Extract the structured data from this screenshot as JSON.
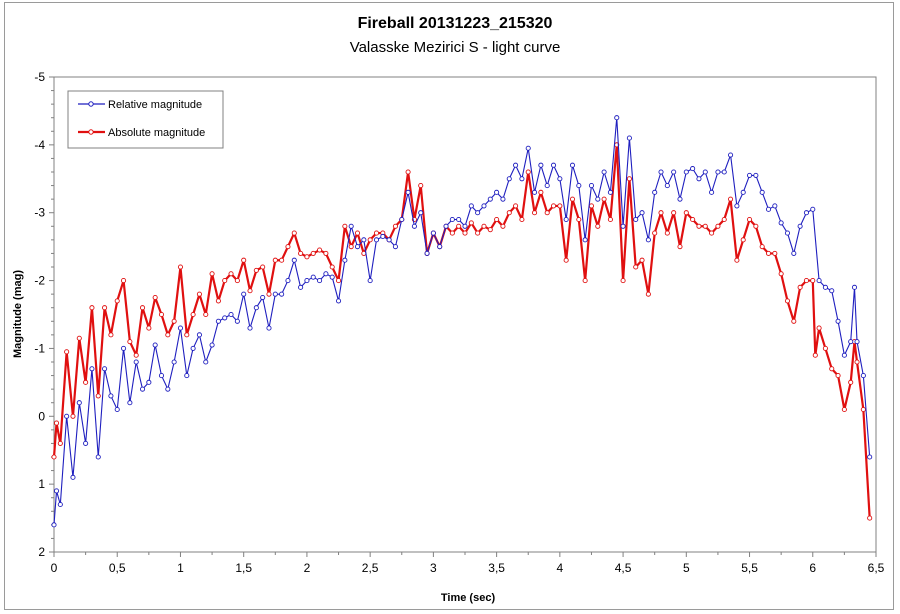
{
  "chart_data": {
    "type": "line",
    "title": "Fireball 20131223_215320",
    "subtitle": "Valasske Mezirici S - light curve",
    "xlabel": "Time (sec)",
    "ylabel": "Magnitude (mag)",
    "xlim": [
      0,
      6.5
    ],
    "ylim": [
      2,
      -5
    ],
    "y_inverted": true,
    "grid": false,
    "legend_position": "top-left",
    "x_ticks": [
      "0",
      "0,5",
      "1",
      "1,5",
      "2",
      "2,5",
      "3",
      "3,5",
      "4",
      "4,5",
      "5",
      "5,5",
      "6",
      "6,5"
    ],
    "x_tick_values": [
      0,
      0.5,
      1,
      1.5,
      2,
      2.5,
      3,
      3.5,
      4,
      4.5,
      5,
      5.5,
      6,
      6.5
    ],
    "y_ticks": [
      "-5",
      "-4",
      "-3",
      "-2",
      "-1",
      "0",
      "1",
      "2"
    ],
    "y_tick_values": [
      -5,
      -4,
      -3,
      -2,
      -1,
      0,
      1,
      2
    ],
    "series": [
      {
        "name": "Relative magnitude",
        "color": "#1f1fbf",
        "points": [
          [
            0,
            1.6
          ],
          [
            0.02,
            1.1
          ],
          [
            0.05,
            1.3
          ],
          [
            0.1,
            0.0
          ],
          [
            0.15,
            0.9
          ],
          [
            0.2,
            -0.2
          ],
          [
            0.25,
            0.4
          ],
          [
            0.3,
            -0.7
          ],
          [
            0.35,
            0.6
          ],
          [
            0.4,
            -0.7
          ],
          [
            0.45,
            -0.3
          ],
          [
            0.5,
            -0.1
          ],
          [
            0.55,
            -1.0
          ],
          [
            0.6,
            -0.2
          ],
          [
            0.65,
            -0.8
          ],
          [
            0.7,
            -0.4
          ],
          [
            0.75,
            -0.5
          ],
          [
            0.8,
            -1.05
          ],
          [
            0.85,
            -0.6
          ],
          [
            0.9,
            -0.4
          ],
          [
            0.95,
            -0.8
          ],
          [
            1.0,
            -1.3
          ],
          [
            1.05,
            -0.6
          ],
          [
            1.1,
            -1.0
          ],
          [
            1.15,
            -1.2
          ],
          [
            1.2,
            -0.8
          ],
          [
            1.25,
            -1.05
          ],
          [
            1.3,
            -1.4
          ],
          [
            1.35,
            -1.45
          ],
          [
            1.4,
            -1.5
          ],
          [
            1.45,
            -1.4
          ],
          [
            1.5,
            -1.8
          ],
          [
            1.55,
            -1.3
          ],
          [
            1.6,
            -1.6
          ],
          [
            1.65,
            -1.75
          ],
          [
            1.7,
            -1.3
          ],
          [
            1.75,
            -1.8
          ],
          [
            1.8,
            -1.8
          ],
          [
            1.85,
            -2.0
          ],
          [
            1.9,
            -2.3
          ],
          [
            1.95,
            -1.9
          ],
          [
            2.0,
            -2.0
          ],
          [
            2.05,
            -2.05
          ],
          [
            2.1,
            -2.0
          ],
          [
            2.15,
            -2.1
          ],
          [
            2.2,
            -2.05
          ],
          [
            2.25,
            -1.7
          ],
          [
            2.3,
            -2.3
          ],
          [
            2.35,
            -2.8
          ],
          [
            2.4,
            -2.5
          ],
          [
            2.45,
            -2.6
          ],
          [
            2.5,
            -2.0
          ],
          [
            2.55,
            -2.6
          ],
          [
            2.6,
            -2.65
          ],
          [
            2.65,
            -2.6
          ],
          [
            2.7,
            -2.5
          ],
          [
            2.75,
            -2.9
          ],
          [
            2.8,
            -3.3
          ],
          [
            2.85,
            -2.8
          ],
          [
            2.9,
            -3.0
          ],
          [
            2.95,
            -2.4
          ],
          [
            3.0,
            -2.7
          ],
          [
            3.05,
            -2.5
          ],
          [
            3.1,
            -2.8
          ],
          [
            3.15,
            -2.9
          ],
          [
            3.2,
            -2.9
          ],
          [
            3.25,
            -2.8
          ],
          [
            3.3,
            -3.1
          ],
          [
            3.35,
            -3.0
          ],
          [
            3.4,
            -3.1
          ],
          [
            3.45,
            -3.2
          ],
          [
            3.5,
            -3.3
          ],
          [
            3.55,
            -3.2
          ],
          [
            3.6,
            -3.5
          ],
          [
            3.65,
            -3.7
          ],
          [
            3.7,
            -3.5
          ],
          [
            3.75,
            -3.95
          ],
          [
            3.8,
            -3.3
          ],
          [
            3.85,
            -3.7
          ],
          [
            3.9,
            -3.4
          ],
          [
            3.95,
            -3.7
          ],
          [
            4.0,
            -3.5
          ],
          [
            4.05,
            -2.9
          ],
          [
            4.1,
            -3.7
          ],
          [
            4.15,
            -3.4
          ],
          [
            4.2,
            -2.6
          ],
          [
            4.25,
            -3.4
          ],
          [
            4.3,
            -3.2
          ],
          [
            4.35,
            -3.6
          ],
          [
            4.4,
            -3.3
          ],
          [
            4.45,
            -4.4
          ],
          [
            4.5,
            -2.8
          ],
          [
            4.55,
            -4.1
          ],
          [
            4.6,
            -2.9
          ],
          [
            4.65,
            -3.0
          ],
          [
            4.7,
            -2.6
          ],
          [
            4.75,
            -3.3
          ],
          [
            4.8,
            -3.6
          ],
          [
            4.85,
            -3.4
          ],
          [
            4.9,
            -3.6
          ],
          [
            4.95,
            -3.2
          ],
          [
            5.0,
            -3.6
          ],
          [
            5.05,
            -3.65
          ],
          [
            5.1,
            -3.5
          ],
          [
            5.15,
            -3.6
          ],
          [
            5.2,
            -3.3
          ],
          [
            5.25,
            -3.6
          ],
          [
            5.3,
            -3.6
          ],
          [
            5.35,
            -3.85
          ],
          [
            5.4,
            -3.1
          ],
          [
            5.45,
            -3.3
          ],
          [
            5.5,
            -3.55
          ],
          [
            5.55,
            -3.55
          ],
          [
            5.6,
            -3.3
          ],
          [
            5.65,
            -3.05
          ],
          [
            5.7,
            -3.1
          ],
          [
            5.75,
            -2.85
          ],
          [
            5.8,
            -2.7
          ],
          [
            5.85,
            -2.4
          ],
          [
            5.9,
            -2.8
          ],
          [
            5.95,
            -3.0
          ],
          [
            6.0,
            -3.05
          ],
          [
            6.05,
            -2.0
          ],
          [
            6.1,
            -1.9
          ],
          [
            6.15,
            -1.85
          ],
          [
            6.2,
            -1.4
          ],
          [
            6.25,
            -0.9
          ],
          [
            6.3,
            -1.1
          ],
          [
            6.33,
            -1.9
          ],
          [
            6.35,
            -1.1
          ],
          [
            6.4,
            -0.6
          ],
          [
            6.45,
            0.6
          ]
        ]
      },
      {
        "name": "Absolute magnitude",
        "color": "#e01010",
        "points": [
          [
            0,
            0.6
          ],
          [
            0.02,
            0.1
          ],
          [
            0.05,
            0.4
          ],
          [
            0.1,
            -0.95
          ],
          [
            0.15,
            0.0
          ],
          [
            0.2,
            -1.15
          ],
          [
            0.25,
            -0.5
          ],
          [
            0.3,
            -1.6
          ],
          [
            0.35,
            -0.3
          ],
          [
            0.4,
            -1.6
          ],
          [
            0.45,
            -1.2
          ],
          [
            0.5,
            -1.7
          ],
          [
            0.55,
            -2.0
          ],
          [
            0.6,
            -1.1
          ],
          [
            0.65,
            -0.9
          ],
          [
            0.7,
            -1.6
          ],
          [
            0.75,
            -1.3
          ],
          [
            0.8,
            -1.75
          ],
          [
            0.85,
            -1.5
          ],
          [
            0.9,
            -1.2
          ],
          [
            0.95,
            -1.4
          ],
          [
            1.0,
            -2.2
          ],
          [
            1.05,
            -1.2
          ],
          [
            1.1,
            -1.5
          ],
          [
            1.15,
            -1.8
          ],
          [
            1.2,
            -1.5
          ],
          [
            1.25,
            -2.1
          ],
          [
            1.3,
            -1.7
          ],
          [
            1.35,
            -2.0
          ],
          [
            1.4,
            -2.1
          ],
          [
            1.45,
            -2.0
          ],
          [
            1.5,
            -2.3
          ],
          [
            1.55,
            -1.85
          ],
          [
            1.6,
            -2.15
          ],
          [
            1.65,
            -2.2
          ],
          [
            1.7,
            -1.8
          ],
          [
            1.75,
            -2.3
          ],
          [
            1.8,
            -2.3
          ],
          [
            1.85,
            -2.5
          ],
          [
            1.9,
            -2.7
          ],
          [
            1.95,
            -2.4
          ],
          [
            2.0,
            -2.35
          ],
          [
            2.05,
            -2.4
          ],
          [
            2.1,
            -2.45
          ],
          [
            2.15,
            -2.4
          ],
          [
            2.2,
            -2.2
          ],
          [
            2.25,
            -2.0
          ],
          [
            2.3,
            -2.8
          ],
          [
            2.35,
            -2.5
          ],
          [
            2.4,
            -2.7
          ],
          [
            2.45,
            -2.4
          ],
          [
            2.5,
            -2.6
          ],
          [
            2.55,
            -2.7
          ],
          [
            2.6,
            -2.7
          ],
          [
            2.65,
            -2.6
          ],
          [
            2.7,
            -2.8
          ],
          [
            2.75,
            -2.9
          ],
          [
            2.8,
            -3.6
          ],
          [
            2.85,
            -2.9
          ],
          [
            2.9,
            -3.4
          ],
          [
            2.95,
            -2.4
          ],
          [
            3.0,
            -2.7
          ],
          [
            3.05,
            -2.5
          ],
          [
            3.1,
            -2.8
          ],
          [
            3.15,
            -2.7
          ],
          [
            3.2,
            -2.8
          ],
          [
            3.25,
            -2.7
          ],
          [
            3.3,
            -2.85
          ],
          [
            3.35,
            -2.7
          ],
          [
            3.4,
            -2.8
          ],
          [
            3.45,
            -2.75
          ],
          [
            3.5,
            -2.9
          ],
          [
            3.55,
            -2.8
          ],
          [
            3.6,
            -3.0
          ],
          [
            3.65,
            -3.1
          ],
          [
            3.7,
            -2.9
          ],
          [
            3.75,
            -3.6
          ],
          [
            3.8,
            -3.0
          ],
          [
            3.85,
            -3.3
          ],
          [
            3.9,
            -3.0
          ],
          [
            3.95,
            -3.1
          ],
          [
            4.0,
            -3.1
          ],
          [
            4.05,
            -2.3
          ],
          [
            4.1,
            -3.2
          ],
          [
            4.15,
            -2.9
          ],
          [
            4.2,
            -2.0
          ],
          [
            4.25,
            -3.1
          ],
          [
            4.3,
            -2.8
          ],
          [
            4.35,
            -3.2
          ],
          [
            4.4,
            -2.9
          ],
          [
            4.45,
            -4.0
          ],
          [
            4.5,
            -2.0
          ],
          [
            4.55,
            -3.5
          ],
          [
            4.6,
            -2.2
          ],
          [
            4.65,
            -2.3
          ],
          [
            4.7,
            -1.8
          ],
          [
            4.75,
            -2.7
          ],
          [
            4.8,
            -3.0
          ],
          [
            4.85,
            -2.7
          ],
          [
            4.9,
            -3.0
          ],
          [
            4.95,
            -2.5
          ],
          [
            5.0,
            -3.0
          ],
          [
            5.05,
            -2.9
          ],
          [
            5.1,
            -2.8
          ],
          [
            5.15,
            -2.8
          ],
          [
            5.2,
            -2.7
          ],
          [
            5.25,
            -2.8
          ],
          [
            5.3,
            -2.9
          ],
          [
            5.35,
            -3.2
          ],
          [
            5.4,
            -2.3
          ],
          [
            5.45,
            -2.6
          ],
          [
            5.5,
            -2.9
          ],
          [
            5.55,
            -2.8
          ],
          [
            5.6,
            -2.5
          ],
          [
            5.65,
            -2.4
          ],
          [
            5.7,
            -2.4
          ],
          [
            5.75,
            -2.1
          ],
          [
            5.8,
            -1.7
          ],
          [
            5.85,
            -1.4
          ],
          [
            5.9,
            -1.9
          ],
          [
            5.95,
            -2.0
          ],
          [
            6.0,
            -2.0
          ],
          [
            6.02,
            -0.9
          ],
          [
            6.05,
            -1.3
          ],
          [
            6.1,
            -1.0
          ],
          [
            6.15,
            -0.7
          ],
          [
            6.2,
            -0.6
          ],
          [
            6.25,
            -0.1
          ],
          [
            6.3,
            -0.5
          ],
          [
            6.33,
            -1.1
          ],
          [
            6.35,
            -0.8
          ],
          [
            6.4,
            -0.1
          ],
          [
            6.45,
            1.5
          ]
        ]
      }
    ]
  }
}
